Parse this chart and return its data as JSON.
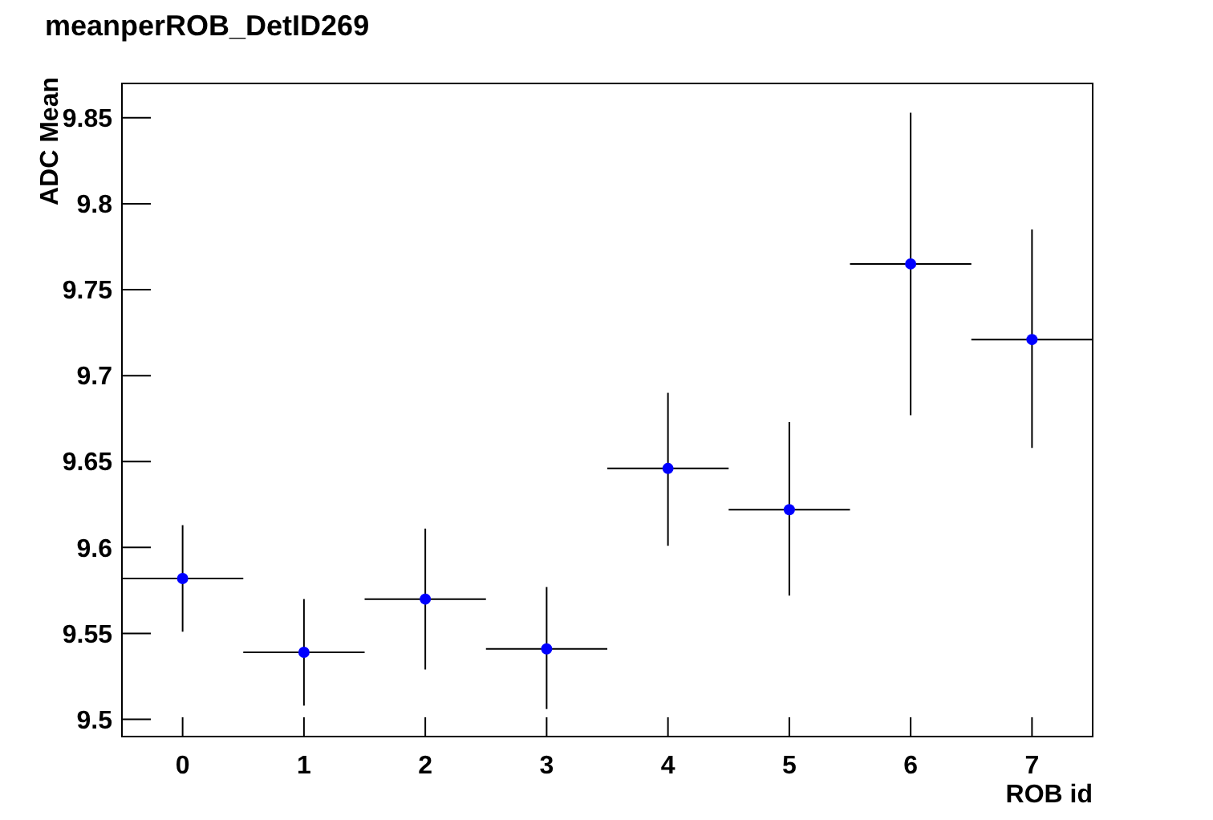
{
  "chart_data": {
    "type": "scatter",
    "title": "meanperROB_DetID269",
    "xlabel": "ROB id",
    "ylabel": "ADC Mean",
    "x": [
      0,
      1,
      2,
      3,
      4,
      5,
      6,
      7
    ],
    "series": [
      {
        "color": "#0000ff",
        "values": [
          9.582,
          9.539,
          9.57,
          9.541,
          9.646,
          9.622,
          9.765,
          9.721
        ],
        "errors": [
          [
            9.551,
            9.613
          ],
          [
            9.508,
            9.57
          ],
          [
            9.529,
            9.611
          ],
          [
            9.506,
            9.577
          ],
          [
            9.601,
            9.69
          ],
          [
            9.572,
            9.673
          ],
          [
            9.677,
            9.853
          ],
          [
            9.658,
            9.785
          ]
        ],
        "xerrors": [
          0.5,
          0.5,
          0.5,
          0.5,
          0.5,
          0.5,
          0.5,
          0.5
        ]
      }
    ],
    "xlim": [
      -0.5,
      7.5
    ],
    "xticks": [
      0,
      1,
      2,
      3,
      4,
      5,
      6,
      7
    ],
    "ylim": [
      9.49,
      9.87
    ],
    "yticks": [
      9.5,
      9.55,
      9.6,
      9.65,
      9.7,
      9.75,
      9.8,
      9.85
    ],
    "marker": "circle"
  }
}
